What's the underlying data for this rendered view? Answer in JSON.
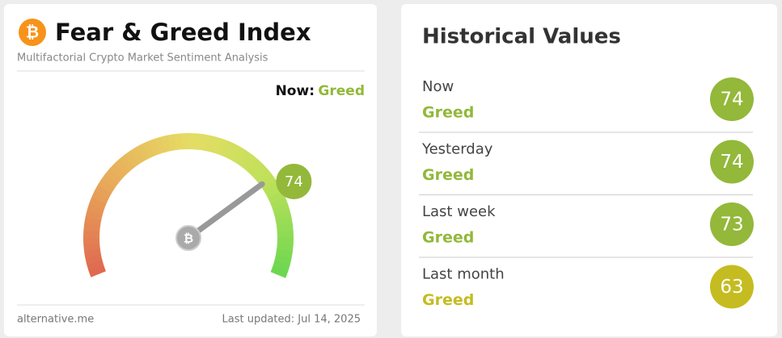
{
  "left": {
    "title": "Fear & Greed Index",
    "subtitle": "Multifactorial Crypto Market Sentiment Analysis",
    "now_label": "Now:",
    "now_class": "Greed",
    "now_color": "#93b83a",
    "gauge": {
      "value": 74,
      "range": [
        0,
        100
      ],
      "color": "#93b83a"
    },
    "footer_left": "alternative.me",
    "footer_right": "Last updated: Jul 14, 2025"
  },
  "right": {
    "title": "Historical Values",
    "rows": [
      {
        "label": "Now",
        "class": "Greed",
        "value": 74,
        "color": "#93b83a"
      },
      {
        "label": "Yesterday",
        "class": "Greed",
        "value": 74,
        "color": "#93b83a"
      },
      {
        "label": "Last week",
        "class": "Greed",
        "value": 73,
        "color": "#93b83a"
      },
      {
        "label": "Last month",
        "class": "Greed",
        "value": 63,
        "color": "#c5bc21"
      }
    ]
  }
}
